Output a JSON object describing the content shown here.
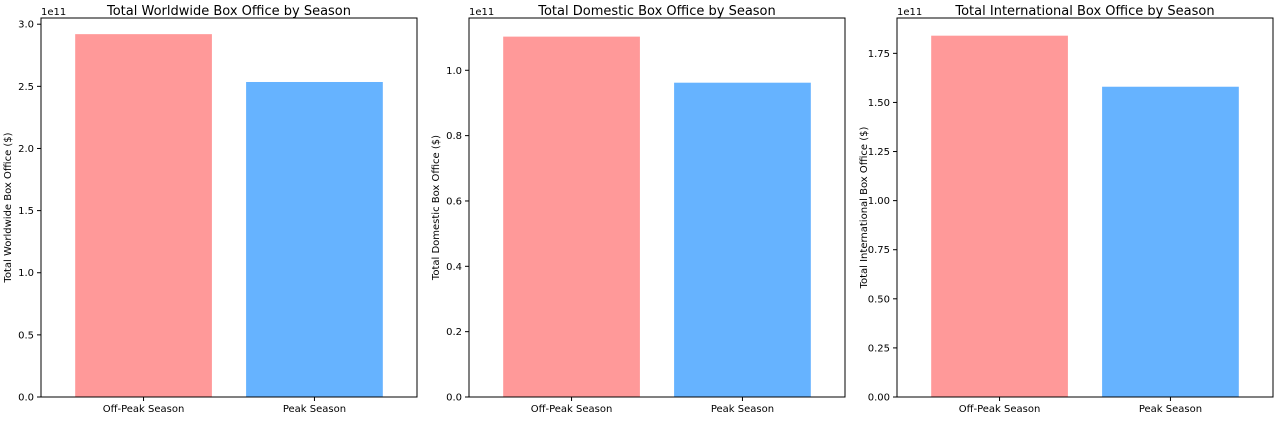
{
  "chart_data": [
    {
      "type": "bar",
      "title": "Total Worldwide Box Office by Season",
      "xlabel": "",
      "ylabel": "Total Worldwide Box Office ($)",
      "offset_label": "1e11",
      "categories": [
        "Off-Peak Season",
        "Peak Season"
      ],
      "values": [
        292000000000.0,
        253500000000.0
      ],
      "colors": [
        "#ff9999",
        "#66b3ff"
      ],
      "ylim": [
        0,
        305000000000.0
      ],
      "yticks": [
        0,
        50000000000.0,
        100000000000.0,
        150000000000.0,
        200000000000.0,
        250000000000.0,
        300000000000.0
      ],
      "ytick_labels": [
        "0.0",
        "0.5",
        "1.0",
        "1.5",
        "2.0",
        "2.5",
        "3.0"
      ]
    },
    {
      "type": "bar",
      "title": "Total Domestic Box Office by Season",
      "xlabel": "",
      "ylabel": "Total Domestic Box Office ($)",
      "offset_label": "1e11",
      "categories": [
        "Off-Peak Season",
        "Peak Season"
      ],
      "values": [
        110300000000.0,
        96200000000.0
      ],
      "colors": [
        "#ff9999",
        "#66b3ff"
      ],
      "ylim": [
        0,
        116000000000.0
      ],
      "yticks": [
        0,
        20000000000.0,
        40000000000.0,
        60000000000.0,
        80000000000.0,
        100000000000.0
      ],
      "ytick_labels": [
        "0.0",
        "0.2",
        "0.4",
        "0.6",
        "0.8",
        "1.0"
      ]
    },
    {
      "type": "bar",
      "title": "Total International Box Office by Season",
      "xlabel": "",
      "ylabel": "Total International Box Office ($)",
      "offset_label": "1e11",
      "categories": [
        "Off-Peak Season",
        "Peak Season"
      ],
      "values": [
        184000000000.0,
        158000000000.0
      ],
      "colors": [
        "#ff9999",
        "#66b3ff"
      ],
      "ylim": [
        0,
        193000000000.0
      ],
      "yticks": [
        0,
        25000000000.0,
        50000000000.0,
        75000000000.0,
        100000000000.0,
        125000000000.0,
        150000000000.0,
        175000000000.0
      ],
      "ytick_labels": [
        "0.00",
        "0.25",
        "0.50",
        "0.75",
        "1.00",
        "1.25",
        "1.50",
        "1.75"
      ]
    }
  ]
}
